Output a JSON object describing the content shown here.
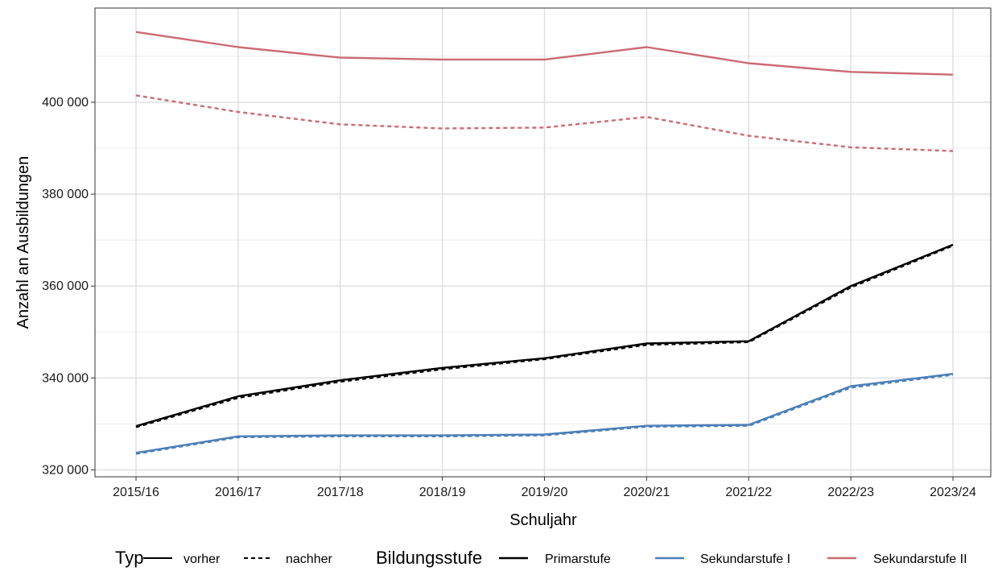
{
  "chart_data": {
    "type": "line",
    "title": "",
    "xlabel": "Schuljahr",
    "ylabel": "Anzahl an Ausbildungen",
    "categories": [
      "2015/16",
      "2016/17",
      "2017/18",
      "2018/19",
      "2019/20",
      "2020/21",
      "2021/22",
      "2022/23",
      "2023/24"
    ],
    "ylim": [
      318500,
      420500
    ],
    "yticks": [
      320000,
      340000,
      360000,
      380000,
      400000
    ],
    "ytick_labels": [
      "320 000",
      "340 000",
      "360 000",
      "380 000",
      "400 000"
    ],
    "grid": true,
    "legend_position": "bottom",
    "series": [
      {
        "name": "Primarstufe",
        "type": "vorher",
        "color": "#000000",
        "dash": "solid",
        "values": [
          329500,
          336000,
          339500,
          342200,
          344300,
          347500,
          348000,
          360000,
          369000
        ]
      },
      {
        "name": "Primarstufe",
        "type": "nachher",
        "color": "#000000",
        "dash": "dashed",
        "values": [
          329300,
          335700,
          339200,
          341900,
          344100,
          347200,
          347800,
          359700,
          368800
        ]
      },
      {
        "name": "Sekundarstufe I",
        "type": "vorher",
        "color": "#4a7fb8",
        "dash": "solid",
        "values": [
          323700,
          327300,
          327500,
          327500,
          327700,
          329600,
          329800,
          338200,
          340900
        ]
      },
      {
        "name": "Sekundarstufe I",
        "type": "nachher",
        "color": "#4a7fb8",
        "dash": "dashed",
        "values": [
          323500,
          327100,
          327300,
          327300,
          327500,
          329400,
          329600,
          337900,
          340700
        ]
      },
      {
        "name": "Sekundarstufe II",
        "type": "vorher",
        "color": "#cb6a73",
        "dash": "solid",
        "values": [
          415300,
          412000,
          409700,
          409300,
          409300,
          412000,
          408500,
          406600,
          406000
        ]
      },
      {
        "name": "Sekundarstufe II",
        "type": "nachher",
        "color": "#cb6a73",
        "dash": "dashed",
        "values": [
          401500,
          397900,
          395200,
          394300,
          394500,
          396800,
          392700,
          390200,
          389400
        ]
      }
    ],
    "legend": {
      "typ_title": "Typ",
      "typ_items": [
        {
          "label": "vorher",
          "dash": "solid"
        },
        {
          "label": "nachher",
          "dash": "dashed"
        }
      ],
      "stufe_title": "Bildungsstufe",
      "stufe_items": [
        {
          "label": "Primarstufe",
          "color": "#000000"
        },
        {
          "label": "Sekundarstufe I",
          "color": "#4a7fb8"
        },
        {
          "label": "Sekundarstufe II",
          "color": "#cb6a73"
        }
      ]
    }
  }
}
